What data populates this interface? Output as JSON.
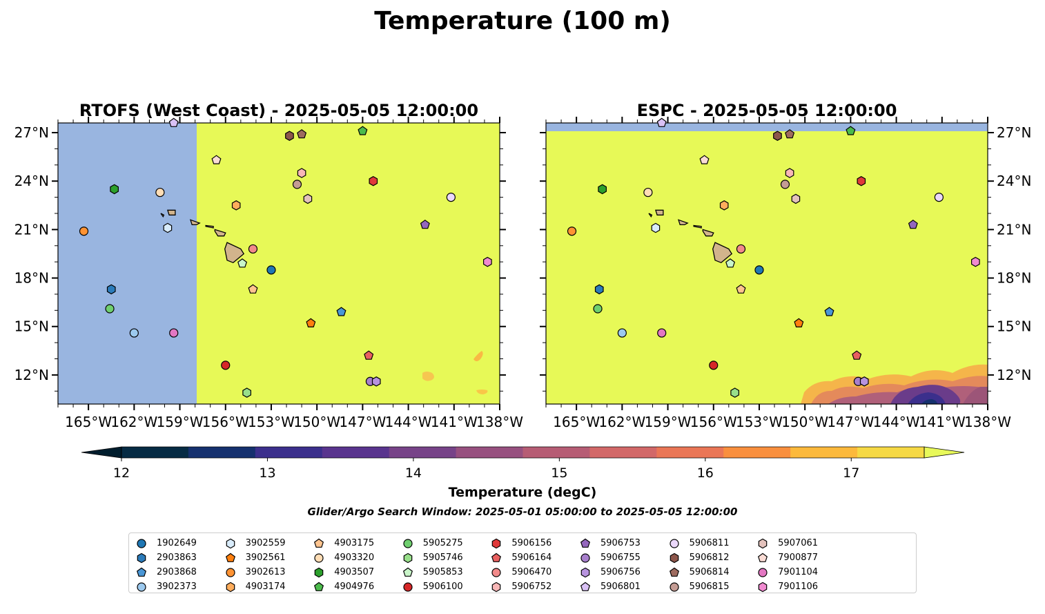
{
  "figure": {
    "suptitle": "Temperature (100 m)",
    "search_window": "Glider/Argo Search Window: 2025-05-01 05:00:00 to 2025-05-05 12:00:00"
  },
  "chart_data": [
    {
      "type": "heatmap",
      "panel": "left",
      "title": "RTOFS (West Coast) - 2025-05-05 12:00:00",
      "xlim": [
        -167,
        -138
      ],
      "ylim": [
        10.2,
        27.6
      ],
      "xticks": [
        -165,
        -162,
        -159,
        -156,
        -153,
        -150,
        -147,
        -144,
        -141,
        -138
      ],
      "xtick_labels": [
        "165°W",
        "162°W",
        "159°W",
        "156°W",
        "153°W",
        "150°W",
        "147°W",
        "144°W",
        "141°W",
        "138°W"
      ],
      "yticks": [
        12,
        15,
        18,
        21,
        24,
        27
      ],
      "ytick_labels": [
        "12°N",
        "15°N",
        "18°N",
        "21°N",
        "24°N",
        "27°N"
      ],
      "field_description_value": "mostly >17.5 degC east of 157.9°W, no data (blue) west of it"
    },
    {
      "type": "heatmap",
      "panel": "right",
      "title": "ESPC - 2025-05-05 12:00:00",
      "xlim": [
        -167,
        -138
      ],
      "ylim": [
        10.2,
        27.6
      ],
      "xticks": [
        -165,
        -162,
        -159,
        -156,
        -153,
        -150,
        -147,
        -144,
        -141,
        -138
      ],
      "xtick_labels": [
        "165°W",
        "162°W",
        "159°W",
        "156°W",
        "153°W",
        "150°W",
        "147°W",
        "144°W",
        "141°W",
        "138°W"
      ],
      "yticks": [
        12,
        15,
        18,
        21,
        24,
        27
      ],
      "ytick_labels": [
        "12°N",
        "15°N",
        "18°N",
        "21°N",
        "24°N",
        "27°N"
      ]
    }
  ],
  "colorbar": {
    "label": "Temperature (degC)",
    "ticks": [
      "12",
      "13",
      "14",
      "15",
      "16",
      "17"
    ],
    "range": [
      12,
      17.5
    ],
    "step": 0.5,
    "colors": [
      "#062b44",
      "#15306e",
      "#3b2f8c",
      "#59348e",
      "#774388",
      "#97507f",
      "#b65c74",
      "#d26868",
      "#ea7656",
      "#f98f3e",
      "#fcb93c",
      "#f6d945"
    ],
    "under_color": "#001d2d",
    "over_color": "#e8f95a"
  },
  "colors": {
    "no_data": "#99b5e0",
    "warm": "#e7f957",
    "land": "#d2b48c"
  },
  "floats": [
    {
      "id": "1902649",
      "marker": "circle",
      "color": "#1f77b4",
      "lon": -153.0,
      "lat": 18.5
    },
    {
      "id": "2903863",
      "marker": "hexagon",
      "color": "#2b7bba",
      "lon": -163.5,
      "lat": 17.3
    },
    {
      "id": "2903868",
      "marker": "pentagon",
      "color": "#4a97d6",
      "lon": -148.4,
      "lat": 15.9
    },
    {
      "id": "3902373",
      "marker": "circle",
      "color": "#9cc9ee",
      "lon": -162.0,
      "lat": 14.6
    },
    {
      "id": "3902559",
      "marker": "hexagon",
      "color": "#d9ecfb",
      "lon": -159.8,
      "lat": 21.1
    },
    {
      "id": "3902561",
      "marker": "pentagon",
      "color": "#ff7f0e",
      "lon": -150.4,
      "lat": 15.2
    },
    {
      "id": "3902613",
      "marker": "circle",
      "color": "#ff9333",
      "lon": -165.3,
      "lat": 20.9
    },
    {
      "id": "4903174",
      "marker": "hexagon",
      "color": "#ffad5c",
      "lon": -155.3,
      "lat": 22.5
    },
    {
      "id": "4903175",
      "marker": "pentagon",
      "color": "#ffc48f",
      "lon": -154.2,
      "lat": 17.3
    },
    {
      "id": "4903320",
      "marker": "circle",
      "color": "#ffddb5",
      "lon": -160.3,
      "lat": 23.3
    },
    {
      "id": "4903507",
      "marker": "hexagon",
      "color": "#2ca02c",
      "lon": -163.3,
      "lat": 23.5
    },
    {
      "id": "4904976",
      "marker": "pentagon",
      "color": "#4cbb4c",
      "lon": -147.0,
      "lat": 27.1
    },
    {
      "id": "5905275",
      "marker": "circle",
      "color": "#6fcf6f",
      "lon": -163.6,
      "lat": 16.1
    },
    {
      "id": "5905746",
      "marker": "hexagon",
      "color": "#98df8a",
      "lon": -154.6,
      "lat": 10.9
    },
    {
      "id": "5905853",
      "marker": "pentagon",
      "color": "#c9f5c9",
      "lon": -154.9,
      "lat": 18.9
    },
    {
      "id": "5906100",
      "marker": "circle",
      "color": "#d62728",
      "lon": -156.0,
      "lat": 12.6
    },
    {
      "id": "5906156",
      "marker": "hexagon",
      "color": "#e0393a",
      "lon": -146.3,
      "lat": 24.0
    },
    {
      "id": "5906164",
      "marker": "pentagon",
      "color": "#e86060",
      "lon": -146.6,
      "lat": 13.2
    },
    {
      "id": "5906470",
      "marker": "circle",
      "color": "#f28a8a",
      "lon": -154.2,
      "lat": 19.8
    },
    {
      "id": "5906752",
      "marker": "hexagon",
      "color": "#f8b7b7",
      "lon": -151.0,
      "lat": 24.5
    },
    {
      "id": "5906753",
      "marker": "pentagon",
      "color": "#9467bd",
      "lon": -142.9,
      "lat": 21.3
    },
    {
      "id": "5906755",
      "marker": "circle",
      "color": "#a77fcc",
      "lon": -146.5,
      "lat": 11.6
    },
    {
      "id": "5906756",
      "marker": "hexagon",
      "color": "#b793de",
      "lon": -146.1,
      "lat": 11.6
    },
    {
      "id": "5906801",
      "marker": "pentagon",
      "color": "#d9c1f5",
      "lon": -159.4,
      "lat": 27.6
    },
    {
      "id": "5906811",
      "marker": "circle",
      "color": "#ebd8fb",
      "lon": -141.2,
      "lat": 23.0
    },
    {
      "id": "5906812",
      "marker": "hexagon",
      "color": "#8c564b",
      "lon": -151.8,
      "lat": 26.8
    },
    {
      "id": "5906814",
      "marker": "pentagon",
      "color": "#9e6b5f",
      "lon": -151.0,
      "lat": 26.9
    },
    {
      "id": "5906815",
      "marker": "circle",
      "color": "#c49c94",
      "lon": -151.3,
      "lat": 23.8
    },
    {
      "id": "5907061",
      "marker": "hexagon",
      "color": "#e3c2bc",
      "lon": -150.6,
      "lat": 22.9
    },
    {
      "id": "7900877",
      "marker": "pentagon",
      "color": "#fadcd5",
      "lon": -156.6,
      "lat": 25.3
    },
    {
      "id": "7901104",
      "marker": "circle",
      "color": "#e377c2",
      "lon": -159.4,
      "lat": 14.6
    },
    {
      "id": "7901106",
      "marker": "hexagon",
      "color": "#f08ad0",
      "lon": -138.8,
      "lat": 19.0
    }
  ],
  "legend_layout": {
    "columns": 9,
    "rows": 4
  }
}
